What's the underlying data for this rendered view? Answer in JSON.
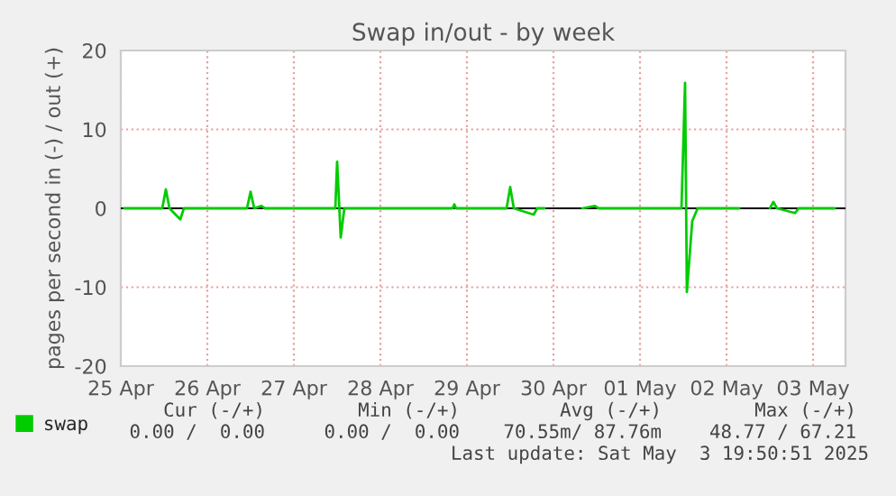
{
  "chart_data": {
    "type": "line",
    "title": "Swap in/out - by week",
    "ylabel": "pages per second in (-) / out (+)",
    "x": [
      "2025-04-25T13:00",
      "2025-04-25T23:30",
      "2025-04-26T00:30",
      "2025-04-26T01:30",
      "2025-04-26T04:30",
      "2025-04-26T05:30",
      "2025-04-26T23:00",
      "2025-04-27T00:00",
      "2025-04-27T01:00",
      "2025-04-27T03:00",
      "2025-04-27T04:00",
      "2025-04-27T23:30",
      "2025-04-28T00:00",
      "2025-04-28T01:00",
      "2025-04-28T02:00",
      "2025-04-29T08:00",
      "2025-04-29T08:30",
      "2025-04-29T09:00",
      "2025-04-29T23:00",
      "2025-04-30T00:00",
      "2025-04-30T01:00",
      "2025-04-30T06:30",
      "2025-04-30T07:30",
      "2025-04-30T09:30",
      "2025-04-30T10:00",
      "2025-04-30T20:00",
      "2025-04-30T23:30",
      "2025-05-01T00:30",
      "2025-05-01T23:30",
      "2025-05-02T00:30",
      "2025-05-02T01:00",
      "2025-05-02T02:30",
      "2025-05-02T04:00",
      "2025-05-02T15:30",
      "2025-05-02T16:00",
      "2025-05-03T00:00",
      "2025-05-03T01:00",
      "2025-05-03T02:00",
      "2025-05-03T07:00",
      "2025-05-03T08:00",
      "2025-05-03T18:00"
    ],
    "series": [
      {
        "name": "swap",
        "color": "#00cc00",
        "values": [
          0,
          0,
          2.4,
          0,
          -1.4,
          0,
          0,
          2.1,
          0,
          0.3,
          0,
          0,
          5.9,
          -3.7,
          0,
          0,
          0.5,
          0,
          0,
          2.7,
          0,
          -0.8,
          0,
          0,
          null,
          0,
          0.3,
          0,
          0,
          15.9,
          -10.6,
          -1.6,
          0,
          0,
          null,
          0,
          0.8,
          0,
          -0.6,
          0,
          0
        ]
      }
    ],
    "xlim": [
      "2025-04-25T12:00",
      "2025-05-03T21:00"
    ],
    "xticks": [
      {
        "value": "2025-04-25T12:00",
        "label": "25 Apr"
      },
      {
        "value": "2025-04-26T12:00",
        "label": "26 Apr"
      },
      {
        "value": "2025-04-27T12:00",
        "label": "27 Apr"
      },
      {
        "value": "2025-04-28T12:00",
        "label": "28 Apr"
      },
      {
        "value": "2025-04-29T12:00",
        "label": "29 Apr"
      },
      {
        "value": "2025-04-30T12:00",
        "label": "30 Apr"
      },
      {
        "value": "2025-05-01T12:00",
        "label": "01 May"
      },
      {
        "value": "2025-05-02T12:00",
        "label": "02 May"
      },
      {
        "value": "2025-05-03T12:00",
        "label": "03 May"
      }
    ],
    "ylim": [
      -20,
      20
    ],
    "yticks": [
      -20,
      -10,
      0,
      10,
      20
    ],
    "ref_lines": [
      {
        "axis": "y",
        "value": 0,
        "color": "#000000"
      }
    ],
    "grid": true,
    "legend": "bottom left",
    "annotations": [
      "Cur (-/+)",
      "Min (-/+)",
      "Avg (-/+)",
      "Max (-/+)",
      "0.00 /  0.00",
      "0.00 /  0.00",
      "70.55m/ 87.76m",
      "48.77 / 67.21",
      "Last update: Sat May  3 19:50:51 2025"
    ]
  }
}
